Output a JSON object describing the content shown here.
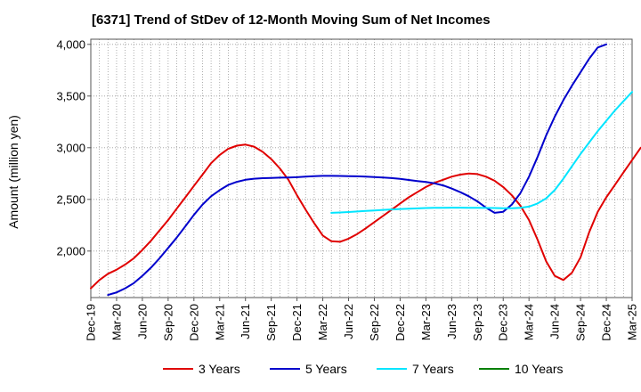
{
  "chart_data": {
    "type": "line",
    "title": "[6371]  Trend of StDev of 12-Month Moving Sum of Net Incomes",
    "xlabel": "",
    "ylabel": "Amount (million yen)",
    "x_tick_labels": [
      "Dec-19",
      "Mar-20",
      "Jun-20",
      "Sep-20",
      "Dec-20",
      "Mar-21",
      "Jun-21",
      "Sep-21",
      "Dec-21",
      "Mar-22",
      "Jun-22",
      "Sep-22",
      "Dec-22",
      "Mar-23",
      "Jun-23",
      "Sep-23",
      "Dec-23",
      "Mar-24",
      "Jun-24",
      "Sep-24",
      "Dec-24",
      "Mar-25"
    ],
    "y_ticks": [
      2000,
      2500,
      3000,
      3500,
      4000
    ],
    "y_tick_labels": [
      "2,000",
      "2,500",
      "3,000",
      "3,500",
      "4,000"
    ],
    "ylim": [
      1550,
      4050
    ],
    "grid": true,
    "legend_position": "bottom",
    "series": [
      {
        "name": "3 Years",
        "color": "#e00000",
        "x_start": 0,
        "values": [
          1640,
          1720,
          1780,
          1820,
          1870,
          1930,
          2010,
          2100,
          2200,
          2300,
          2410,
          2520,
          2630,
          2740,
          2850,
          2930,
          2990,
          3020,
          3030,
          3010,
          2960,
          2890,
          2800,
          2690,
          2540,
          2400,
          2270,
          2150,
          2095,
          2090,
          2120,
          2165,
          2220,
          2280,
          2340,
          2400,
          2460,
          2520,
          2570,
          2620,
          2660,
          2690,
          2720,
          2740,
          2750,
          2745,
          2720,
          2680,
          2620,
          2540,
          2440,
          2300,
          2110,
          1900,
          1760,
          1720,
          1790,
          1940,
          2180,
          2380,
          2520,
          2640,
          2760,
          2880,
          3000
        ]
      },
      {
        "name": "5 Years",
        "color": "#0000cc",
        "x_start": 2,
        "values": [
          1575,
          1600,
          1640,
          1690,
          1760,
          1840,
          1930,
          2030,
          2130,
          2240,
          2350,
          2450,
          2530,
          2590,
          2640,
          2670,
          2690,
          2700,
          2705,
          2708,
          2710,
          2712,
          2715,
          2720,
          2725,
          2728,
          2728,
          2727,
          2725,
          2723,
          2720,
          2716,
          2712,
          2706,
          2698,
          2688,
          2678,
          2668,
          2655,
          2635,
          2605,
          2570,
          2530,
          2480,
          2420,
          2370,
          2380,
          2450,
          2560,
          2720,
          2910,
          3120,
          3300,
          3460,
          3600,
          3730,
          3860,
          3970,
          4000
        ]
      },
      {
        "name": "7 Years",
        "color": "#00e5ff",
        "x_start": 28,
        "values": [
          2370,
          2373,
          2378,
          2383,
          2388,
          2393,
          2398,
          2403,
          2407,
          2410,
          2413,
          2416,
          2418,
          2419,
          2420,
          2420,
          2419,
          2418,
          2417,
          2416,
          2415,
          2415,
          2418,
          2430,
          2460,
          2510,
          2590,
          2700,
          2820,
          2940,
          3050,
          3160,
          3260,
          3360,
          3450,
          3540
        ]
      },
      {
        "name": "10 Years",
        "color": "#008000",
        "x_start": 0,
        "values": []
      }
    ]
  }
}
